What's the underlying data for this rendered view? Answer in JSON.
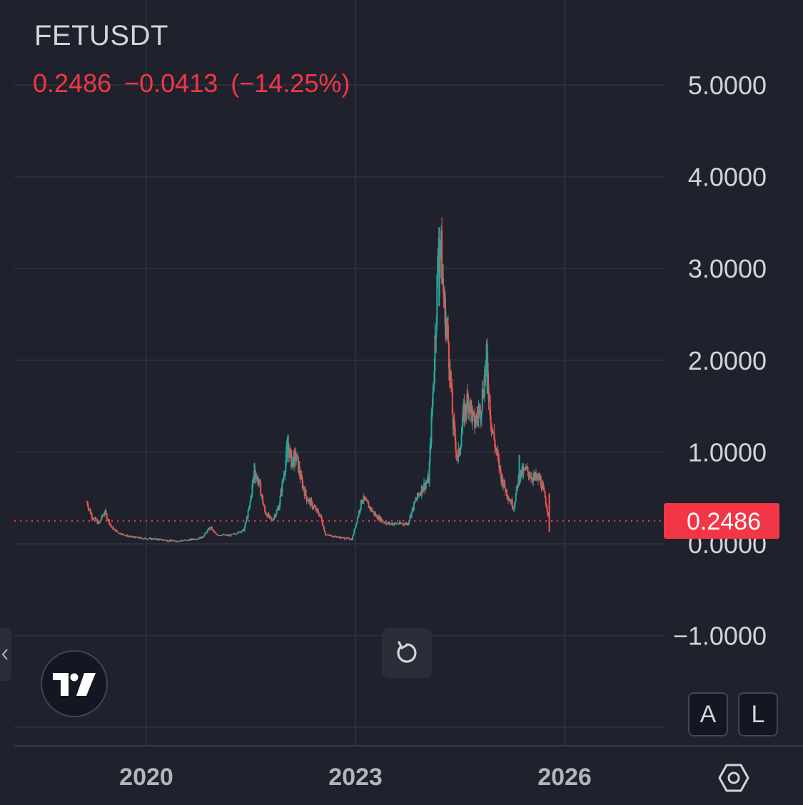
{
  "symbol": "FETUSDT",
  "quote": {
    "last": "0.2486",
    "change": "−0.0413",
    "change_pct": "(−14.25%)"
  },
  "price_tag": "0.2486",
  "buttons": {
    "auto_label": "A",
    "log_label": "L"
  },
  "colors": {
    "up": "#26a69a",
    "down": "#ef5350",
    "accent": "#f23645",
    "background": "#1f222d"
  },
  "icons": [
    "tradingview-logo-icon",
    "chevron-left-icon",
    "reset-icon",
    "gear-icon"
  ],
  "chart_data": {
    "type": "candlestick",
    "title": "",
    "xlabel": "",
    "ylabel": "",
    "y_ticks": [
      "5.0000",
      "4.0000",
      "3.0000",
      "2.0000",
      "1.0000",
      "0.0000",
      "−1.0000"
    ],
    "y_tick_values": [
      5,
      4,
      3,
      2,
      1,
      0,
      -1
    ],
    "x_ticks": [
      "2020",
      "2023",
      "2026"
    ],
    "x_tick_values": [
      2020,
      2023,
      2026
    ],
    "ylim": [
      -2,
      5.6
    ],
    "xlim": [
      2017.9,
      2027.4
    ],
    "last_price": 0.2486,
    "grid": true,
    "series": [
      {
        "name": "",
        "points": [
          [
            2019.15,
            0.45
          ],
          [
            2019.22,
            0.3
          ],
          [
            2019.32,
            0.22
          ],
          [
            2019.4,
            0.35
          ],
          [
            2019.5,
            0.18
          ],
          [
            2019.6,
            0.12
          ],
          [
            2019.75,
            0.08
          ],
          [
            2019.95,
            0.06
          ],
          [
            2020.15,
            0.05
          ],
          [
            2020.4,
            0.03
          ],
          [
            2020.6,
            0.04
          ],
          [
            2020.8,
            0.07
          ],
          [
            2020.92,
            0.18
          ],
          [
            2021.0,
            0.1
          ],
          [
            2021.2,
            0.09
          ],
          [
            2021.4,
            0.15
          ],
          [
            2021.48,
            0.4
          ],
          [
            2021.55,
            0.8
          ],
          [
            2021.62,
            0.65
          ],
          [
            2021.7,
            0.35
          ],
          [
            2021.8,
            0.25
          ],
          [
            2021.9,
            0.4
          ],
          [
            2021.98,
            0.8
          ],
          [
            2022.03,
            1.1
          ],
          [
            2022.08,
            0.9
          ],
          [
            2022.15,
            0.95
          ],
          [
            2022.22,
            0.7
          ],
          [
            2022.3,
            0.5
          ],
          [
            2022.4,
            0.4
          ],
          [
            2022.5,
            0.3
          ],
          [
            2022.57,
            0.1
          ],
          [
            2022.7,
            0.08
          ],
          [
            2022.85,
            0.06
          ],
          [
            2022.95,
            0.05
          ],
          [
            2023.05,
            0.35
          ],
          [
            2023.1,
            0.5
          ],
          [
            2023.2,
            0.4
          ],
          [
            2023.3,
            0.3
          ],
          [
            2023.45,
            0.22
          ],
          [
            2023.6,
            0.22
          ],
          [
            2023.75,
            0.22
          ],
          [
            2023.85,
            0.45
          ],
          [
            2023.95,
            0.6
          ],
          [
            2024.05,
            0.7
          ],
          [
            2024.12,
            1.8
          ],
          [
            2024.18,
            3.0
          ],
          [
            2024.22,
            3.3
          ],
          [
            2024.27,
            2.6
          ],
          [
            2024.33,
            2.2
          ],
          [
            2024.4,
            1.3
          ],
          [
            2024.47,
            0.9
          ],
          [
            2024.55,
            1.4
          ],
          [
            2024.62,
            1.6
          ],
          [
            2024.7,
            1.3
          ],
          [
            2024.8,
            1.5
          ],
          [
            2024.88,
            2.0
          ],
          [
            2024.95,
            1.3
          ],
          [
            2025.02,
            1.0
          ],
          [
            2025.1,
            0.7
          ],
          [
            2025.2,
            0.5
          ],
          [
            2025.27,
            0.4
          ],
          [
            2025.35,
            0.75
          ],
          [
            2025.45,
            0.8
          ],
          [
            2025.55,
            0.72
          ],
          [
            2025.65,
            0.7
          ],
          [
            2025.72,
            0.5
          ],
          [
            2025.78,
            0.25
          ]
        ]
      }
    ]
  }
}
